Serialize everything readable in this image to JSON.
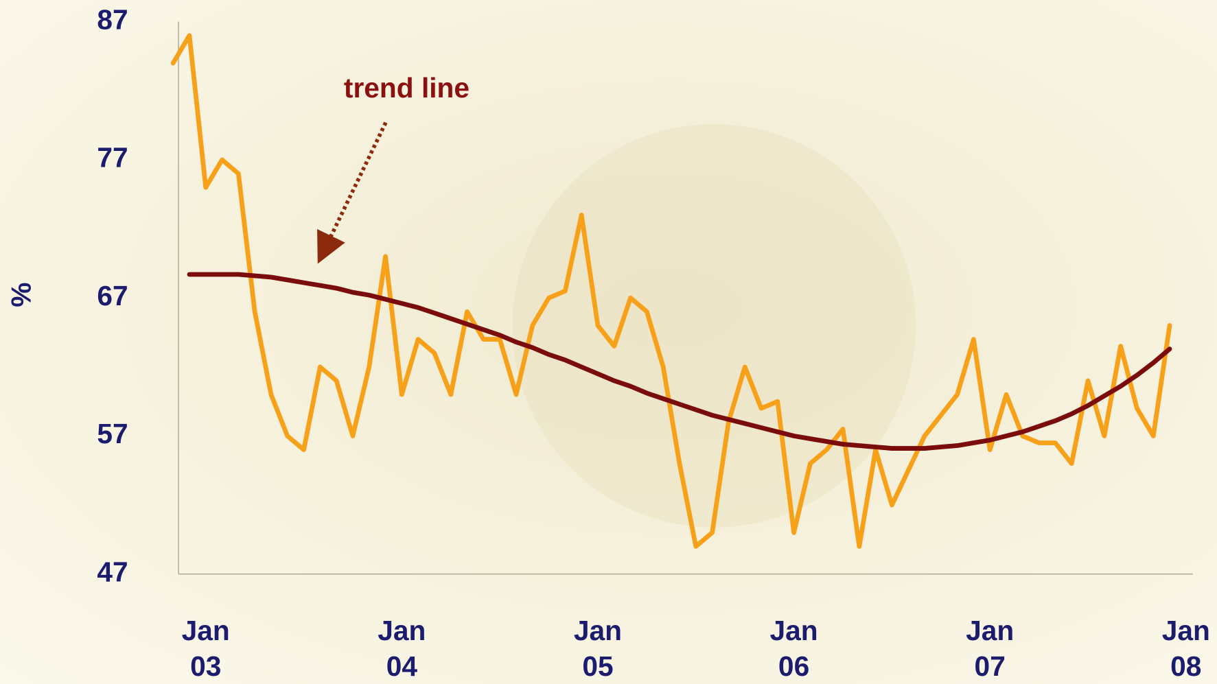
{
  "chart_data": {
    "type": "line",
    "ylabel": "%",
    "ylim": [
      47,
      87
    ],
    "yticks": [
      47,
      57,
      67,
      77,
      87
    ],
    "categories": [
      null,
      null,
      "Jan 03",
      null,
      null,
      null,
      null,
      null,
      null,
      null,
      null,
      null,
      null,
      null,
      "Jan 04",
      null,
      null,
      null,
      null,
      null,
      null,
      null,
      null,
      null,
      null,
      null,
      "Jan 05",
      null,
      null,
      null,
      null,
      null,
      null,
      null,
      null,
      null,
      null,
      null,
      "Jan 06",
      null,
      null,
      null,
      null,
      null,
      null,
      null,
      null,
      null,
      null,
      null,
      "Jan 07",
      null,
      null,
      null,
      null,
      null,
      null,
      null,
      null,
      null,
      null,
      null,
      "Jan 08"
    ],
    "series": [
      {
        "color": "#f7a11a",
        "values": [
          84,
          86,
          75,
          77,
          76,
          66,
          60,
          57,
          56,
          62,
          61,
          57,
          62,
          70,
          60,
          64,
          63,
          60,
          66,
          64,
          64,
          60,
          65,
          67,
          67.5,
          73,
          65,
          63.5,
          67,
          66,
          62,
          55,
          49,
          50,
          58,
          62,
          59,
          59.5,
          50,
          55,
          56,
          57.5,
          49,
          56,
          52,
          54.5,
          57,
          58.5,
          60,
          64,
          56,
          60,
          57,
          56.5,
          56.5,
          55,
          61,
          57,
          63.5,
          59,
          57,
          65,
          null
        ]
      },
      {
        "name": "trend line",
        "color": "#7a0c0c",
        "values": [
          null,
          68.7,
          68.7,
          68.7,
          68.7,
          68.6,
          68.5,
          68.3,
          68.1,
          67.9,
          67.7,
          67.4,
          67.2,
          66.9,
          66.6,
          66.3,
          65.9,
          65.5,
          65.1,
          64.7,
          64.3,
          63.8,
          63.4,
          62.9,
          62.5,
          62.0,
          61.5,
          61.0,
          60.6,
          60.1,
          59.7,
          59.3,
          58.9,
          58.5,
          58.2,
          57.9,
          57.6,
          57.3,
          57.0,
          56.8,
          56.6,
          56.4,
          56.3,
          56.2,
          56.1,
          56.1,
          56.1,
          56.2,
          56.3,
          56.5,
          56.7,
          57.0,
          57.3,
          57.7,
          58.1,
          58.6,
          59.2,
          59.9,
          60.6,
          61.4,
          62.3,
          63.3,
          null
        ]
      }
    ]
  }
}
